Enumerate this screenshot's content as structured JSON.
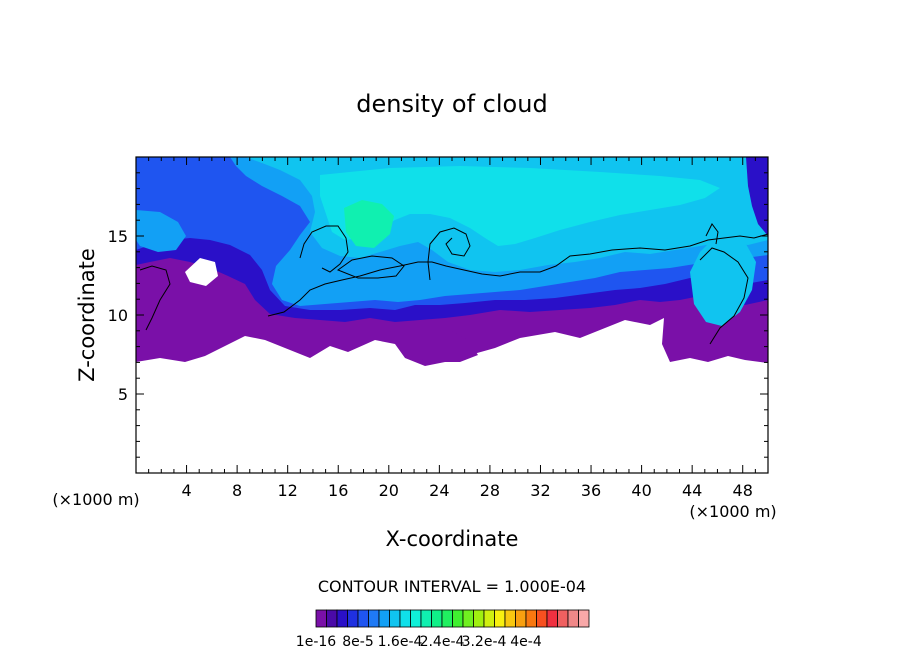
{
  "chart_data": {
    "type": "heatmap",
    "title": "density of cloud",
    "xlabel": "X-coordinate",
    "ylabel": "Z-coordinate",
    "x_units": "(×1000 m)",
    "y_units": "(×1000 m)",
    "xlim": [
      0,
      50
    ],
    "ylim": [
      0,
      20
    ],
    "x_ticks": [
      "4",
      "8",
      "12",
      "16",
      "20",
      "24",
      "28",
      "32",
      "36",
      "40",
      "44",
      "48"
    ],
    "y_ticks": [
      "5",
      "10",
      "15"
    ],
    "contour_interval_text": "CONTOUR INTERVAL = 1.000E-04",
    "colorbar_labels": [
      "1e-16",
      "8e-5",
      "1.6e-4",
      "2.4e-4",
      "3.2e-4",
      "4e-4"
    ],
    "colorbar_colors": [
      "#7a10a8",
      "#4a0aa8",
      "#2a10c8",
      "#1f30e0",
      "#1f55f0",
      "#1f7af5",
      "#12a0f5",
      "#10c4f0",
      "#10e0ea",
      "#10f0d8",
      "#10f0b0",
      "#10f088",
      "#20f060",
      "#40f030",
      "#70f020",
      "#a0f010",
      "#d0f010",
      "#f8f010",
      "#f8c810",
      "#f8a010",
      "#f87810",
      "#f85020",
      "#f03040",
      "#f06060",
      "#f08888",
      "#f8a8a8"
    ]
  }
}
